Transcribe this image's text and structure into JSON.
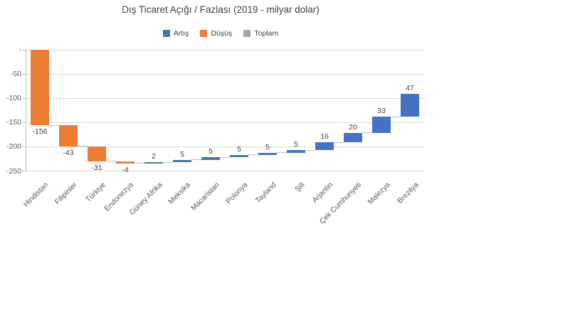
{
  "title": "Dış Ticaret Açığı / Fazlası (2019 - milyar dolar)",
  "colors": {
    "increase": "#4472C4",
    "decrease": "#ED7D31",
    "total": "#A5A5A5",
    "gridline": "#D9D9D9",
    "axis": "#BFBFBF",
    "connector": "#BFBFBF",
    "axis_text": "#595959",
    "label_text": "#404040",
    "title_text": "#404040",
    "background": "#FFFFFF"
  },
  "legend": {
    "position": "top",
    "items": [
      {
        "label": "Artış",
        "color": "#4472C4"
      },
      {
        "label": "Düşüş",
        "color": "#ED7D31"
      },
      {
        "label": "Toplam",
        "color": "#A5A5A5"
      }
    ]
  },
  "chart_data": {
    "type": "bar",
    "subtype": "waterfall",
    "title": "Dış Ticaret Açığı / Fazlası (2019 - milyar dolar)",
    "xlabel": "",
    "ylabel": "",
    "categories": [
      "Hindistan",
      "Filipinler",
      "Türkiye",
      "Endonezya",
      "Güney Afrika",
      "Meksika",
      "Macaristan",
      "Polonya",
      "Tayland",
      "Şili",
      "Arjantin",
      "Çek Cumhuriyeti",
      "Malezya",
      "Brezilya"
    ],
    "values": [
      -156,
      -43,
      -31,
      -4,
      2,
      5,
      5,
      5,
      5,
      5,
      16,
      20,
      33,
      47
    ],
    "data_labels": [
      "-156",
      "-43",
      "-31",
      "-4",
      "2",
      "5",
      "5",
      "5",
      "5",
      "5",
      "16",
      "20",
      "33",
      "47"
    ],
    "cumulative_end": [
      -156,
      -199,
      -230,
      -234,
      -232,
      -227,
      -222,
      -217,
      -212,
      -207,
      -191,
      -171,
      -138,
      -91
    ],
    "ylim": [
      -250,
      0
    ],
    "y_ticks": [
      {
        "value": 0,
        "label": "-"
      },
      {
        "value": -50,
        "label": "-50"
      },
      {
        "value": -100,
        "label": "-100"
      },
      {
        "value": -150,
        "label": "-150"
      },
      {
        "value": -200,
        "label": "-200"
      },
      {
        "value": -250,
        "label": "-250"
      }
    ],
    "legend": [
      "Artış",
      "Düşüş",
      "Toplam"
    ],
    "legend_position": "top",
    "grid": true
  }
}
